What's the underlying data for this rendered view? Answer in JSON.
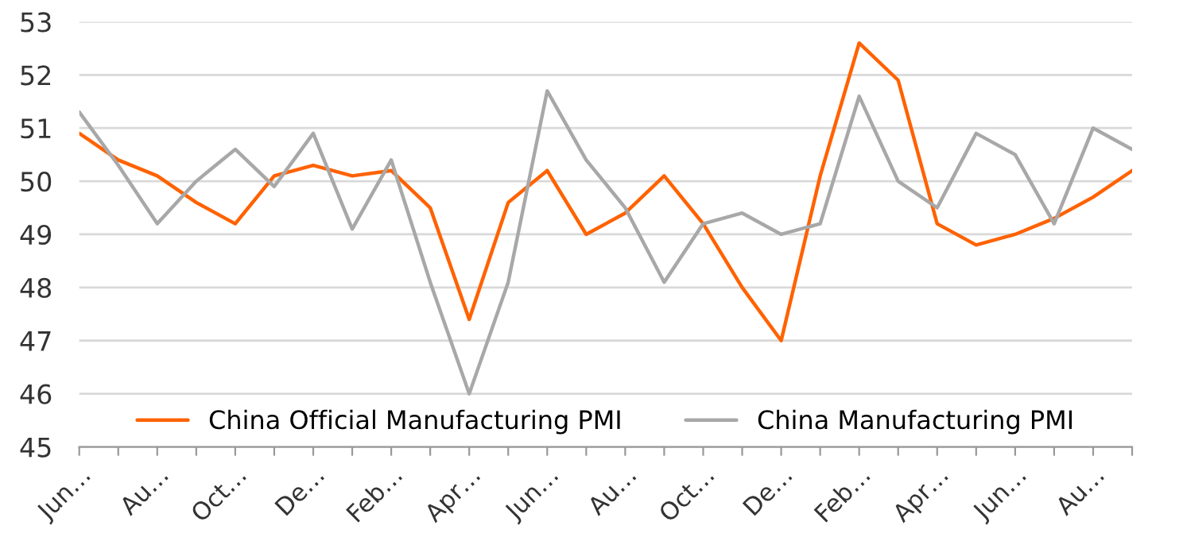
{
  "chart_data": {
    "type": "line",
    "categories": [
      "Jun…",
      null,
      "Au…",
      null,
      "Oct…",
      null,
      "De…",
      null,
      "Feb…",
      null,
      "Apr…",
      null,
      "Jun…",
      null,
      "Au…",
      null,
      "Oct…",
      null,
      "De…",
      null,
      "Feb…",
      null,
      "Apr…",
      null,
      "Jun…",
      null,
      "Au…",
      null
    ],
    "series": [
      {
        "name": "China Official Manufacturing PMI",
        "color": "#ff6200",
        "values": [
          50.9,
          50.4,
          50.1,
          49.6,
          49.2,
          50.1,
          50.3,
          50.1,
          50.2,
          49.5,
          47.4,
          49.6,
          50.2,
          49.0,
          49.4,
          50.1,
          49.2,
          48.0,
          47.0,
          50.1,
          52.6,
          51.9,
          49.2,
          48.8,
          49.0,
          49.3,
          49.7,
          50.2
        ]
      },
      {
        "name": "China Manufacturing PMI",
        "color": "#a8a8a8",
        "values": [
          51.3,
          50.3,
          49.2,
          50.0,
          50.6,
          49.9,
          50.9,
          49.1,
          50.4,
          48.1,
          46.0,
          48.1,
          51.7,
          50.4,
          49.5,
          48.1,
          49.2,
          49.4,
          49.0,
          49.2,
          51.6,
          50.0,
          49.5,
          50.9,
          50.5,
          49.2,
          51.0,
          50.6
        ]
      }
    ],
    "ylim": [
      45,
      53
    ],
    "yticks": [
      45,
      46,
      47,
      48,
      49,
      50,
      51,
      52,
      53
    ],
    "grid": "y",
    "legend": "bottom",
    "marker": "none",
    "line_style": "solid"
  }
}
